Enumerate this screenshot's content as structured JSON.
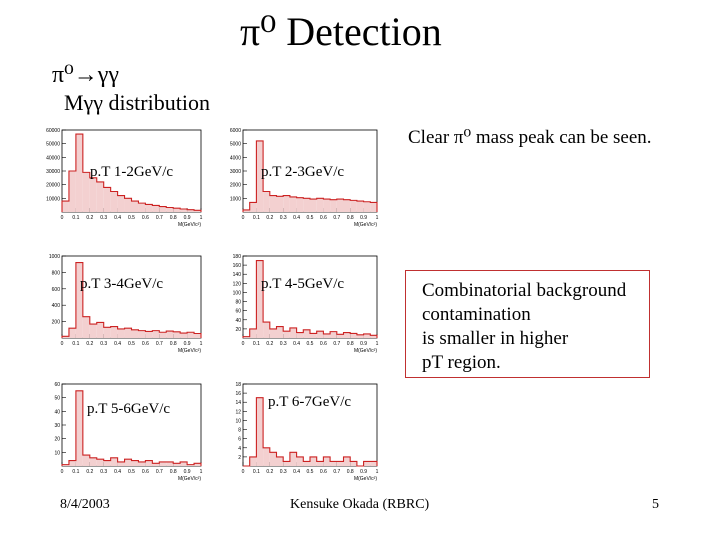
{
  "slide": {
    "title": "π⁰ Detection",
    "subtitle_line1": "π⁰→γγ",
    "subtitle_line2": "Mγγ distribution",
    "peak_note": "Clear π⁰ mass peak can be seen.",
    "bg_note_lines": [
      "Combinatorial background",
      "contamination",
      "is smaller in higher",
      "pT region."
    ],
    "footer_date": "8/4/2003",
    "footer_author": "Kensuke Okada (RBRC)",
    "page_number": "5"
  },
  "colors": {
    "histogram": "#cc2222",
    "bg_box_border": "#c03030"
  },
  "chart_data": [
    {
      "type": "histogram",
      "panel_label": "p.T 1-2GeV/c",
      "xlabel": "M(GeV/c²)",
      "ylim": [
        0,
        60000
      ],
      "xlim": [
        0,
        1
      ],
      "y_ticks": [
        "10000",
        "20000",
        "30000",
        "40000",
        "50000",
        "60000"
      ],
      "x_ticks": [
        "0",
        "0.1",
        "0.2",
        "0.3",
        "0.4",
        "0.5",
        "0.6",
        "0.7",
        "0.8",
        "0.9",
        "1"
      ],
      "x": [
        0.025,
        0.075,
        0.125,
        0.175,
        0.225,
        0.275,
        0.325,
        0.375,
        0.425,
        0.475,
        0.525,
        0.575,
        0.625,
        0.675,
        0.725,
        0.775,
        0.825,
        0.875,
        0.925,
        0.975
      ],
      "values": [
        8000,
        30000,
        57000,
        29000,
        25000,
        22000,
        18000,
        15000,
        12000,
        10000,
        8000,
        6500,
        5500,
        4800,
        4000,
        3300,
        2800,
        2200,
        1700,
        1200
      ]
    },
    {
      "type": "histogram",
      "panel_label": "p.T 2-3GeV/c",
      "xlabel": "M(GeV/c²)",
      "ylim": [
        0,
        6000
      ],
      "xlim": [
        0,
        1
      ],
      "y_ticks": [
        "1000",
        "2000",
        "3000",
        "4000",
        "5000",
        "6000"
      ],
      "x_ticks": [
        "0",
        "0.1",
        "0.2",
        "0.3",
        "0.4",
        "0.5",
        "0.6",
        "0.7",
        "0.8",
        "0.9",
        "1"
      ],
      "x": [
        0.025,
        0.075,
        0.125,
        0.175,
        0.225,
        0.275,
        0.325,
        0.375,
        0.425,
        0.475,
        0.525,
        0.575,
        0.625,
        0.675,
        0.725,
        0.775,
        0.825,
        0.875,
        0.925,
        0.975
      ],
      "values": [
        150,
        700,
        5200,
        1500,
        1200,
        1150,
        1200,
        1100,
        1050,
        1000,
        950,
        1000,
        950,
        900,
        950,
        900,
        850,
        800,
        750,
        700
      ]
    },
    {
      "type": "histogram",
      "panel_label": "p.T 3-4GeV/c",
      "xlabel": "M(GeV/c²)",
      "ylim": [
        0,
        1000
      ],
      "xlim": [
        0,
        1
      ],
      "y_ticks": [
        "200",
        "400",
        "600",
        "800",
        "1000"
      ],
      "x_ticks": [
        "0",
        "0.1",
        "0.2",
        "0.3",
        "0.4",
        "0.5",
        "0.6",
        "0.7",
        "0.8",
        "0.9",
        "1"
      ],
      "x": [
        0.025,
        0.075,
        0.125,
        0.175,
        0.225,
        0.275,
        0.325,
        0.375,
        0.425,
        0.475,
        0.525,
        0.575,
        0.625,
        0.675,
        0.725,
        0.775,
        0.825,
        0.875,
        0.925,
        0.975
      ],
      "values": [
        20,
        120,
        920,
        260,
        170,
        190,
        130,
        140,
        110,
        120,
        100,
        90,
        80,
        90,
        70,
        85,
        75,
        60,
        70,
        55
      ]
    },
    {
      "type": "histogram",
      "panel_label": "p.T 4-5GeV/c",
      "xlabel": "M(GeV/c²)",
      "ylim": [
        0,
        180
      ],
      "xlim": [
        0,
        1
      ],
      "y_ticks": [
        "20",
        "40",
        "60",
        "80",
        "100",
        "120",
        "140",
        "160",
        "180"
      ],
      "x_ticks": [
        "0",
        "0.1",
        "0.2",
        "0.3",
        "0.4",
        "0.5",
        "0.6",
        "0.7",
        "0.8",
        "0.9",
        "1"
      ],
      "x": [
        0.025,
        0.075,
        0.125,
        0.175,
        0.225,
        0.275,
        0.325,
        0.375,
        0.425,
        0.475,
        0.525,
        0.575,
        0.625,
        0.675,
        0.725,
        0.775,
        0.825,
        0.875,
        0.925,
        0.975
      ],
      "values": [
        3,
        20,
        170,
        35,
        20,
        25,
        15,
        22,
        12,
        18,
        10,
        15,
        9,
        14,
        8,
        12,
        10,
        7,
        9,
        6
      ]
    },
    {
      "type": "histogram",
      "panel_label": "p.T 5-6GeV/c",
      "xlabel": "M(GeV/c²)",
      "ylim": [
        0,
        60
      ],
      "xlim": [
        0,
        1
      ],
      "y_ticks": [
        "10",
        "20",
        "30",
        "40",
        "50",
        "60"
      ],
      "x_ticks": [
        "0",
        "0.1",
        "0.2",
        "0.3",
        "0.4",
        "0.5",
        "0.6",
        "0.7",
        "0.8",
        "0.9",
        "1"
      ],
      "x": [
        0.025,
        0.075,
        0.125,
        0.175,
        0.225,
        0.275,
        0.325,
        0.375,
        0.425,
        0.475,
        0.525,
        0.575,
        0.625,
        0.675,
        0.725,
        0.775,
        0.825,
        0.875,
        0.925,
        0.975
      ],
      "values": [
        1,
        4,
        55,
        8,
        6,
        5,
        4,
        6,
        3,
        5,
        4,
        3,
        4,
        2,
        3,
        3,
        2,
        3,
        1,
        2
      ]
    },
    {
      "type": "histogram",
      "panel_label": "p.T 6-7GeV/c",
      "xlabel": "M(GeV/c²)",
      "ylim": [
        0,
        18
      ],
      "xlim": [
        0,
        1
      ],
      "y_ticks": [
        "2",
        "4",
        "6",
        "8",
        "10",
        "12",
        "14",
        "16",
        "18"
      ],
      "x_ticks": [
        "0",
        "0.1",
        "0.2",
        "0.3",
        "0.4",
        "0.5",
        "0.6",
        "0.7",
        "0.8",
        "0.9",
        "1"
      ],
      "x": [
        0.025,
        0.075,
        0.125,
        0.175,
        0.225,
        0.275,
        0.325,
        0.375,
        0.425,
        0.475,
        0.525,
        0.575,
        0.625,
        0.675,
        0.725,
        0.775,
        0.825,
        0.875,
        0.925,
        0.975
      ],
      "values": [
        0,
        2,
        15,
        4,
        3,
        2,
        1,
        3,
        2,
        1,
        2,
        1,
        2,
        1,
        1,
        2,
        1,
        0,
        1,
        1
      ]
    }
  ]
}
